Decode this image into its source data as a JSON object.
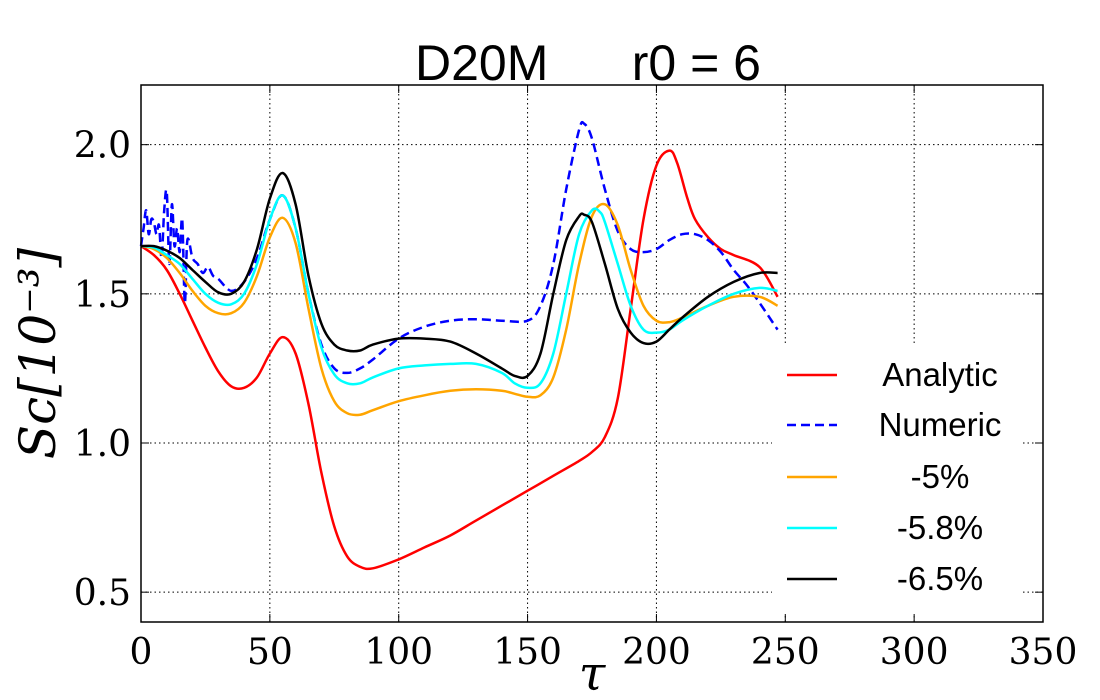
{
  "chart_data": {
    "type": "line",
    "title": "D20M      r0 = 6",
    "xlabel": "τ",
    "ylabel": "Sc[10⁻³]",
    "xlim": [
      0,
      350
    ],
    "ylim": [
      0.4,
      2.2
    ],
    "xticks": [
      0,
      50,
      100,
      150,
      200,
      250,
      300,
      350
    ],
    "yticks": [
      0.5,
      1.0,
      1.5,
      2.0
    ],
    "xtick_labels": [
      "0",
      "50",
      "100",
      "150",
      "200",
      "250",
      "300",
      "350"
    ],
    "ytick_labels": [
      "0.5",
      "1.0",
      "1.5",
      "2.0"
    ],
    "grid": true,
    "legend_position": "lower-right",
    "series": [
      {
        "name": "Analytic",
        "color": "#ff0000",
        "style": "solid",
        "x": [
          0,
          5,
          10,
          15,
          20,
          25,
          30,
          35,
          40,
          45,
          50,
          55,
          60,
          65,
          70,
          75,
          80,
          85,
          90,
          100,
          110,
          120,
          130,
          140,
          150,
          160,
          170,
          175,
          180,
          185,
          190,
          195,
          200,
          205,
          208,
          212,
          215,
          220,
          225,
          230,
          240,
          247
        ],
        "y": [
          1.66,
          1.63,
          1.58,
          1.5,
          1.41,
          1.32,
          1.24,
          1.19,
          1.185,
          1.22,
          1.3,
          1.355,
          1.3,
          1.13,
          0.9,
          0.72,
          0.62,
          0.585,
          0.58,
          0.61,
          0.65,
          0.69,
          0.74,
          0.79,
          0.84,
          0.89,
          0.94,
          0.97,
          1.02,
          1.15,
          1.45,
          1.75,
          1.93,
          1.98,
          1.94,
          1.82,
          1.75,
          1.69,
          1.65,
          1.63,
          1.59,
          1.49
        ]
      },
      {
        "name": "Numeric",
        "color": "#0000ff",
        "style": "dashed",
        "x": [
          0,
          1,
          2,
          3,
          4,
          5,
          6,
          7,
          8,
          9,
          10,
          11,
          12,
          13,
          14,
          15,
          16,
          17,
          18,
          20,
          22,
          24,
          26,
          28,
          30,
          35,
          40,
          45,
          50,
          55,
          60,
          65,
          70,
          75,
          80,
          85,
          90,
          100,
          110,
          120,
          130,
          140,
          150,
          155,
          160,
          165,
          170,
          172,
          175,
          180,
          185,
          190,
          195,
          200,
          205,
          210,
          215,
          220,
          225,
          230,
          235,
          240,
          247
        ],
        "y": [
          1.66,
          1.72,
          1.78,
          1.7,
          1.75,
          1.74,
          1.7,
          1.73,
          1.62,
          1.78,
          1.84,
          1.6,
          1.8,
          1.66,
          1.72,
          1.64,
          1.75,
          1.47,
          1.68,
          1.62,
          1.6,
          1.57,
          1.59,
          1.56,
          1.55,
          1.51,
          1.54,
          1.62,
          1.75,
          1.83,
          1.72,
          1.5,
          1.33,
          1.25,
          1.235,
          1.25,
          1.28,
          1.35,
          1.39,
          1.41,
          1.415,
          1.41,
          1.41,
          1.46,
          1.6,
          1.85,
          2.05,
          2.07,
          2.02,
          1.85,
          1.71,
          1.65,
          1.64,
          1.65,
          1.68,
          1.7,
          1.7,
          1.68,
          1.64,
          1.58,
          1.53,
          1.47,
          1.38
        ]
      },
      {
        "name": "-5%",
        "color": "#ffa500",
        "style": "solid",
        "x": [
          0,
          5,
          10,
          15,
          20,
          25,
          30,
          35,
          40,
          45,
          50,
          55,
          60,
          65,
          70,
          75,
          80,
          85,
          90,
          100,
          110,
          120,
          130,
          140,
          145,
          150,
          155,
          160,
          165,
          170,
          175,
          180,
          185,
          190,
          195,
          200,
          205,
          210,
          220,
          230,
          240,
          247
        ],
        "y": [
          1.66,
          1.65,
          1.62,
          1.57,
          1.51,
          1.46,
          1.435,
          1.435,
          1.47,
          1.56,
          1.69,
          1.755,
          1.67,
          1.45,
          1.25,
          1.14,
          1.1,
          1.095,
          1.11,
          1.14,
          1.16,
          1.175,
          1.18,
          1.175,
          1.165,
          1.155,
          1.16,
          1.22,
          1.38,
          1.6,
          1.76,
          1.8,
          1.73,
          1.58,
          1.46,
          1.41,
          1.405,
          1.42,
          1.46,
          1.49,
          1.49,
          1.46
        ]
      },
      {
        "name": "-5.8%",
        "color": "#00ffff",
        "style": "solid",
        "x": [
          0,
          5,
          10,
          15,
          20,
          25,
          30,
          35,
          40,
          45,
          50,
          55,
          60,
          65,
          70,
          75,
          80,
          85,
          90,
          100,
          110,
          120,
          130,
          140,
          145,
          150,
          155,
          160,
          165,
          170,
          175,
          178,
          180,
          185,
          190,
          195,
          200,
          205,
          210,
          220,
          230,
          240,
          247
        ],
        "y": [
          1.66,
          1.655,
          1.63,
          1.6,
          1.55,
          1.5,
          1.47,
          1.465,
          1.5,
          1.6,
          1.75,
          1.83,
          1.72,
          1.5,
          1.32,
          1.23,
          1.2,
          1.2,
          1.22,
          1.25,
          1.26,
          1.265,
          1.265,
          1.235,
          1.2,
          1.185,
          1.2,
          1.3,
          1.5,
          1.7,
          1.78,
          1.775,
          1.74,
          1.6,
          1.46,
          1.38,
          1.37,
          1.38,
          1.41,
          1.46,
          1.5,
          1.52,
          1.51
        ]
      },
      {
        "name": "-6.5%",
        "color": "#000000",
        "style": "solid",
        "x": [
          0,
          5,
          10,
          15,
          20,
          25,
          30,
          35,
          40,
          45,
          50,
          55,
          60,
          65,
          70,
          75,
          80,
          85,
          90,
          100,
          110,
          120,
          130,
          140,
          145,
          150,
          155,
          160,
          165,
          170,
          172,
          175,
          180,
          185,
          190,
          195,
          200,
          205,
          210,
          220,
          230,
          240,
          247
        ],
        "y": [
          1.66,
          1.66,
          1.645,
          1.62,
          1.58,
          1.54,
          1.505,
          1.5,
          1.54,
          1.65,
          1.82,
          1.905,
          1.8,
          1.56,
          1.4,
          1.33,
          1.31,
          1.31,
          1.33,
          1.35,
          1.35,
          1.34,
          1.3,
          1.25,
          1.225,
          1.225,
          1.3,
          1.5,
          1.68,
          1.76,
          1.765,
          1.74,
          1.6,
          1.45,
          1.37,
          1.335,
          1.34,
          1.38,
          1.42,
          1.49,
          1.54,
          1.57,
          1.57
        ]
      }
    ]
  }
}
